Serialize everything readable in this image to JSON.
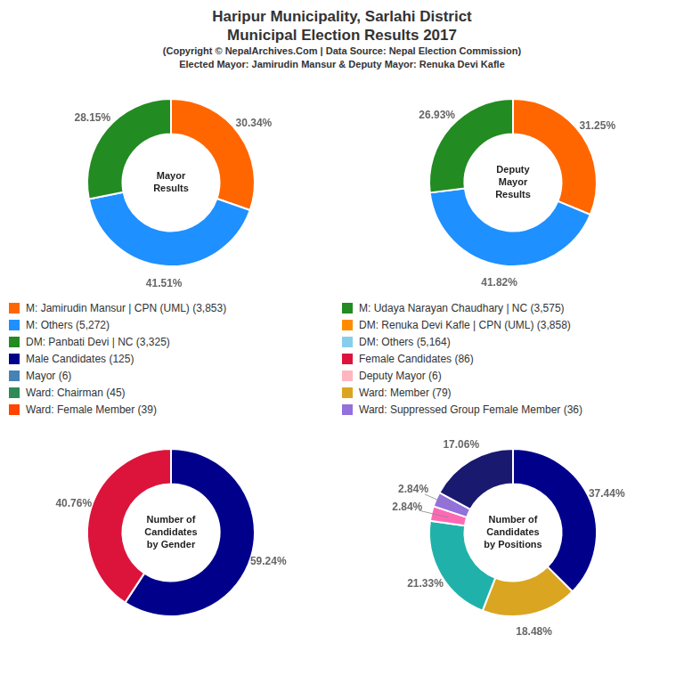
{
  "title": [
    "Haripur Municipality, Sarlahi District",
    "Municipal Election Results 2017"
  ],
  "subtitle": [
    "(Copyright © NepalArchives.Com | Data Source: Nepal Election Commission)",
    "Elected Mayor: Jamirudin Mansur & Deputy Mayor: Renuka Devi Kafle"
  ],
  "chart_data": [
    {
      "type": "doughnut",
      "annotation": "Mayor\nResults",
      "values": [
        30.34,
        41.51,
        28.15
      ],
      "value_labels": [
        "30.34%",
        "41.51%",
        "28.15%"
      ],
      "colors": [
        "#FF6600",
        "#1E90FF",
        "#228B22"
      ],
      "data_labels": true
    },
    {
      "type": "doughnut",
      "annotation": "Deputy\nMayor\nResults",
      "values": [
        31.25,
        41.82,
        26.93
      ],
      "value_labels": [
        "31.25%",
        "41.82%",
        "26.93%"
      ],
      "colors": [
        "#FF6600",
        "#1E90FF",
        "#228B22"
      ],
      "data_labels": true
    },
    {
      "type": "doughnut",
      "annotation": "Number of\nCandidates\nby Gender",
      "values": [
        59.24,
        40.76
      ],
      "value_labels": [
        "59.24%",
        "40.76%"
      ],
      "colors": [
        "#00008B",
        "#DC143C"
      ],
      "data_labels": true
    },
    {
      "type": "doughnut",
      "annotation": "Number of\nCandidates\nby Positions",
      "values": [
        37.44,
        18.48,
        21.33,
        2.84,
        2.84,
        17.06
      ],
      "value_labels": [
        "37.44%",
        "18.48%",
        "21.33%",
        "2.84%",
        "2.84%",
        "17.06%"
      ],
      "colors": [
        "#00008B",
        "#DAA520",
        "#20B2AA",
        "#FF69B4",
        "#9370DB",
        "#191970"
      ],
      "data_labels": true
    }
  ],
  "legend_columns": [
    [
      {
        "name": "M: Jamirudin Mansur | CPN (UML) (3,853)",
        "color": "#FF6600"
      },
      {
        "name": "M: Others (5,272)",
        "color": "#1E90FF"
      },
      {
        "name": "DM: Panbati Devi | NC (3,325)",
        "color": "#228B22"
      },
      {
        "name": "Male Candidates (125)",
        "color": "#00008B"
      },
      {
        "name": "Mayor (6)",
        "color": "#4682B4"
      },
      {
        "name": "Ward: Chairman (45)",
        "color": "#2E8B57"
      },
      {
        "name": "Ward: Female Member (39)",
        "color": "#FF4500"
      }
    ],
    [
      {
        "name": "M: Udaya Narayan Chaudhary | NC (3,575)",
        "color": "#228B22"
      },
      {
        "name": "DM: Renuka Devi Kafle | CPN (UML) (3,858)",
        "color": "#FF8C00"
      },
      {
        "name": "DM: Others (5,164)",
        "color": "#87CEEB"
      },
      {
        "name": "Female Candidates (86)",
        "color": "#DC143C"
      },
      {
        "name": "Deputy Mayor (6)",
        "color": "#FFB6C1"
      },
      {
        "name": "Ward: Member (79)",
        "color": "#DAA520"
      },
      {
        "name": "Ward: Suppressed Group Female Member (36)",
        "color": "#9370DB"
      }
    ]
  ]
}
